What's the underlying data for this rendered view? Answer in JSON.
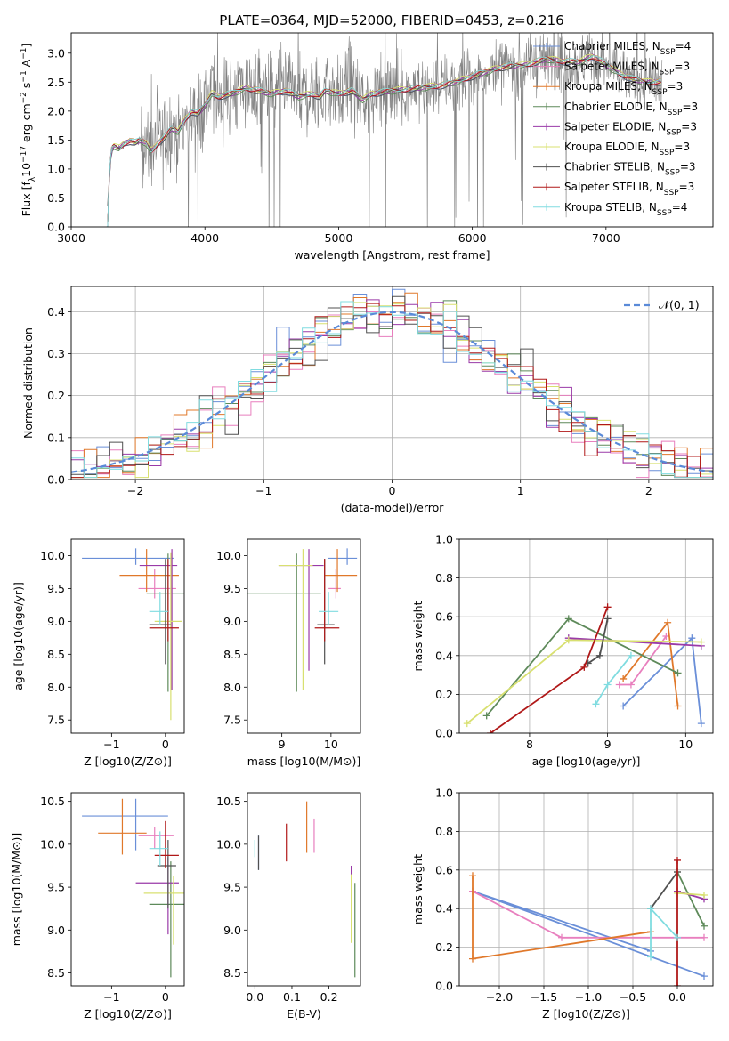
{
  "figure": {
    "title": "PLATE=0364, MJD=52000, FIBERID=0453, z=0.216"
  },
  "models": [
    {
      "name": "Chabrier MILES",
      "nssp": "4",
      "color": "#6a8fd8"
    },
    {
      "name": "Salpeter MILES",
      "nssp": "3",
      "color": "#e87fbe"
    },
    {
      "name": "Kroupa MILES",
      "nssp": "3",
      "color": "#e0782a"
    },
    {
      "name": "Chabrier ELODIE",
      "nssp": "3",
      "color": "#5e8a5a"
    },
    {
      "name": "Salpeter ELODIE",
      "nssp": "3",
      "color": "#9a3aa8"
    },
    {
      "name": "Kroupa ELODIE",
      "nssp": "3",
      "color": "#d8e070"
    },
    {
      "name": "Chabrier STELIB",
      "nssp": "3",
      "color": "#505050"
    },
    {
      "name": "Salpeter STELIB",
      "nssp": "3",
      "color": "#b01818"
    },
    {
      "name": "Kroupa STELIB",
      "nssp": "4",
      "color": "#80dce0"
    }
  ],
  "chart_data": [
    {
      "id": "spectrum",
      "type": "line",
      "title": "PLATE=0364, MJD=52000, FIBERID=0453, z=0.216",
      "xlabel": "wavelength [Angstrom, rest frame]",
      "ylabel": "Flux [f_λ 10^-17 erg cm^-2 s^-1 A^-1]",
      "xlim": [
        3000,
        7800
      ],
      "ylim": [
        0,
        3.35
      ],
      "xticks": [
        "3000",
        "4000",
        "5000",
        "6000",
        "7000"
      ],
      "yticks": [
        "0.0",
        "0.5",
        "1.0",
        "1.5",
        "2.0",
        "2.5",
        "3.0"
      ],
      "legend_position": "right",
      "data_color": "#808080",
      "model_x": [
        3260,
        3300,
        3320,
        3360,
        3400,
        3440,
        3480,
        3520,
        3560,
        3600,
        3650,
        3700,
        3750,
        3800,
        3850,
        3900,
        3950,
        4000,
        4050,
        4100,
        4200,
        4300,
        4400,
        4500,
        4600,
        4700,
        4800,
        4860,
        4900,
        5000,
        5100,
        5180,
        5250,
        5400,
        5600,
        5800,
        6000,
        6200,
        6400,
        6560,
        6700,
        6800,
        6900,
        7000,
        7100,
        7200,
        7300,
        7400
      ],
      "model_y": [
        0.0,
        1.35,
        1.4,
        1.35,
        1.45,
        1.48,
        1.45,
        1.5,
        1.45,
        1.3,
        1.45,
        1.55,
        1.7,
        1.65,
        1.85,
        2.0,
        1.95,
        2.1,
        2.3,
        2.25,
        2.3,
        2.4,
        2.35,
        2.3,
        2.35,
        2.25,
        2.3,
        2.25,
        2.35,
        2.3,
        2.35,
        2.2,
        2.3,
        2.35,
        2.4,
        2.45,
        2.6,
        2.75,
        2.8,
        2.9,
        2.85,
        2.85,
        2.95,
        2.8,
        2.65,
        2.55,
        2.5,
        2.5
      ]
    },
    {
      "id": "residuals",
      "type": "histogram",
      "xlabel": "(data-model)/error",
      "ylabel": "Normed distribution",
      "xlim": [
        -2.5,
        2.5
      ],
      "ylim": [
        0,
        0.46
      ],
      "xticks": [
        "−2",
        "−1",
        "0",
        "1",
        "2"
      ],
      "yticks": [
        "0.0",
        "0.1",
        "0.2",
        "0.3",
        "0.4"
      ],
      "legend": "𝒩(0, 1)",
      "legend_position": "top-right",
      "grid": true,
      "bin_width": 0.1
    },
    {
      "id": "age-vs-z",
      "type": "errorbar",
      "xlabel": "Z [log10(Z/Z⊙)]",
      "ylabel": "age [log10(age/yr)]",
      "xlim": [
        -1.75,
        0.35
      ],
      "ylim": [
        7.3,
        10.25
      ],
      "xticks": [
        "−1",
        "0"
      ],
      "yticks": [
        "7.5",
        "8.0",
        "8.5",
        "9.0",
        "9.5",
        "10.0"
      ],
      "points": [
        {
          "x": -0.55,
          "xerr": [
            1.0,
            0.7
          ],
          "y": 9.96,
          "yerr": [
            0.1,
            0.15
          ]
        },
        {
          "x": -0.2,
          "xerr": [
            0.3,
            0.4
          ],
          "y": 9.5,
          "yerr": [
            0.15,
            0.3
          ]
        },
        {
          "x": -0.35,
          "xerr": [
            0.5,
            0.6
          ],
          "y": 9.7,
          "yerr": [
            0.25,
            0.4
          ]
        },
        {
          "x": 0.05,
          "xerr": [
            0.4,
            0.35
          ],
          "y": 9.43,
          "yerr": [
            1.5,
            0.6
          ]
        },
        {
          "x": 0.12,
          "xerr": [
            0.6,
            0.1
          ],
          "y": 9.85,
          "yerr": [
            1.9,
            0.25
          ]
        },
        {
          "x": 0.1,
          "xerr": [
            0.3,
            0.2
          ],
          "y": 9.0,
          "yerr": [
            1.5,
            1.05
          ]
        },
        {
          "x": 0.0,
          "xerr": [
            0.3,
            0.1
          ],
          "y": 8.95,
          "yerr": [
            0.6,
            1.0
          ]
        },
        {
          "x": 0.05,
          "xerr": [
            0.35,
            0.2
          ],
          "y": 8.9,
          "yerr": [
            0.2,
            1.05
          ]
        },
        {
          "x": -0.1,
          "xerr": [
            0.2,
            0.15
          ],
          "y": 9.15,
          "yerr": [
            0.2,
            0.3
          ]
        }
      ]
    },
    {
      "id": "age-vs-mass",
      "type": "errorbar",
      "xlabel": "mass [log10(M/M⊙)]",
      "ylabel": "",
      "xlim": [
        8.3,
        10.6
      ],
      "ylim": [
        7.3,
        10.25
      ],
      "xticks": [
        "9",
        "10"
      ],
      "yticks": [
        "7.5",
        "8.0",
        "8.5",
        "9.0",
        "9.5",
        "10.0"
      ],
      "points": [
        {
          "x": 10.33,
          "xerr": [
            0.4,
            0.2
          ],
          "y": 9.96,
          "yerr": [
            0.1,
            0.15
          ]
        },
        {
          "x": 10.1,
          "xerr": [
            0.15,
            0.1
          ],
          "y": 9.5,
          "yerr": [
            0.15,
            0.3
          ]
        },
        {
          "x": 10.13,
          "xerr": [
            0.25,
            0.4
          ],
          "y": 9.7,
          "yerr": [
            0.25,
            0.4
          ]
        },
        {
          "x": 9.3,
          "xerr": [
            1.0,
            0.5
          ],
          "y": 9.43,
          "yerr": [
            1.5,
            0.6
          ]
        },
        {
          "x": 9.55,
          "xerr": [
            0.6,
            0.3
          ],
          "y": 9.85,
          "yerr": [
            1.6,
            0.25
          ]
        },
        {
          "x": 9.43,
          "xerr": [
            0.5,
            0.2
          ],
          "y": 9.85,
          "yerr": [
            1.9,
            0.25
          ]
        },
        {
          "x": 9.87,
          "xerr": [
            0.15,
            0.2
          ],
          "y": 8.95,
          "yerr": [
            0.6,
            1.0
          ]
        },
        {
          "x": 9.87,
          "xerr": [
            0.2,
            0.3
          ],
          "y": 8.9,
          "yerr": [
            0.2,
            1.05
          ]
        },
        {
          "x": 9.95,
          "xerr": [
            0.2,
            0.2
          ],
          "y": 9.15,
          "yerr": [
            0.2,
            0.3
          ]
        }
      ]
    },
    {
      "id": "weight-vs-age",
      "type": "line",
      "xlabel": "age [log10(age/yr)]",
      "ylabel": "mass weight",
      "xlim": [
        7.1,
        10.35
      ],
      "ylim": [
        0,
        1.0
      ],
      "xticks": [
        "8",
        "9",
        "10"
      ],
      "yticks": [
        "0.0",
        "0.2",
        "0.4",
        "0.6",
        "0.8",
        "1.0"
      ],
      "grid": true,
      "series": [
        {
          "points": [
            [
              10.2,
              0.05
            ],
            [
              10.08,
              0.49
            ],
            [
              9.2,
              0.14
            ]
          ]
        },
        {
          "points": [
            [
              9.75,
              0.5
            ],
            [
              9.3,
              0.25
            ],
            [
              9.15,
              0.25
            ]
          ]
        },
        {
          "points": [
            [
              9.9,
              0.14
            ],
            [
              9.77,
              0.57
            ],
            [
              9.2,
              0.28
            ]
          ]
        },
        {
          "points": [
            [
              7.45,
              0.09
            ],
            [
              8.5,
              0.59
            ],
            [
              9.9,
              0.31
            ]
          ]
        },
        {
          "points": [
            [
              8.5,
              0.49
            ],
            [
              10.2,
              0.45
            ]
          ]
        },
        {
          "points": [
            [
              7.2,
              0.05
            ],
            [
              8.5,
              0.48
            ],
            [
              10.2,
              0.47
            ]
          ]
        },
        {
          "points": [
            [
              9.0,
              0.59
            ],
            [
              8.9,
              0.4
            ],
            [
              8.75,
              0.36
            ]
          ]
        },
        {
          "points": [
            [
              7.5,
              0.0
            ],
            [
              8.7,
              0.34
            ],
            [
              9.0,
              0.65
            ]
          ]
        },
        {
          "points": [
            [
              8.85,
              0.15
            ],
            [
              9.0,
              0.25
            ],
            [
              9.3,
              0.4
            ]
          ]
        }
      ]
    },
    {
      "id": "mass-vs-z",
      "type": "errorbar",
      "xlabel": "Z [log10(Z/Z⊙)]",
      "ylabel": "mass [log10(M/M⊙)]",
      "xlim": [
        -1.75,
        0.35
      ],
      "ylim": [
        8.35,
        10.6
      ],
      "xticks": [
        "−1",
        "0"
      ],
      "yticks": [
        "8.5",
        "9.0",
        "9.5",
        "10.0",
        "10.5"
      ],
      "points": [
        {
          "x": -0.55,
          "xerr": [
            1.0,
            0.6
          ],
          "y": 10.33,
          "yerr": [
            0.4,
            0.2
          ]
        },
        {
          "x": -0.2,
          "xerr": [
            0.3,
            0.35
          ],
          "y": 10.1,
          "yerr": [
            0.15,
            0.1
          ]
        },
        {
          "x": -0.8,
          "xerr": [
            0.45,
            0.45
          ],
          "y": 10.13,
          "yerr": [
            0.25,
            0.4
          ]
        },
        {
          "x": 0.1,
          "xerr": [
            0.4,
            0.25
          ],
          "y": 9.3,
          "yerr": [
            0.85,
            0.5
          ]
        },
        {
          "x": 0.05,
          "xerr": [
            0.6,
            0.2
          ],
          "y": 9.55,
          "yerr": [
            0.6,
            0.3
          ]
        },
        {
          "x": 0.15,
          "xerr": [
            0.55,
            0.2
          ],
          "y": 9.43,
          "yerr": [
            0.6,
            0.2
          ]
        },
        {
          "x": 0.05,
          "xerr": [
            0.2,
            0.15
          ],
          "y": 9.75,
          "yerr": [
            0.5,
            0.3
          ]
        },
        {
          "x": 0.0,
          "xerr": [
            0.2,
            0.25
          ],
          "y": 9.87,
          "yerr": [
            0.15,
            0.4
          ]
        },
        {
          "x": -0.1,
          "xerr": [
            0.2,
            0.15
          ],
          "y": 9.95,
          "yerr": [
            0.2,
            0.2
          ]
        }
      ]
    },
    {
      "id": "mass-vs-ebv",
      "type": "errorbar",
      "xlabel": "E(B-V)",
      "ylabel": "",
      "xlim": [
        -0.02,
        0.285
      ],
      "ylim": [
        8.35,
        10.6
      ],
      "xticks": [
        "0.0",
        "0.1",
        "0.2"
      ],
      "yticks": [
        "8.5",
        "9.0",
        "9.5",
        "10.0",
        "10.5"
      ],
      "points": [
        {
          "x": 0.01,
          "y": 9.9,
          "yerr": [
            0.2,
            0.2
          ]
        },
        {
          "x": 0.16,
          "y": 10.1,
          "yerr": [
            0.2,
            0.2
          ]
        },
        {
          "x": 0.14,
          "y": 10.2,
          "yerr": [
            0.3,
            0.3
          ]
        },
        {
          "x": 0.27,
          "y": 9.0,
          "yerr": [
            0.55,
            0.55
          ]
        },
        {
          "x": 0.26,
          "y": 9.55,
          "yerr": [
            0.1,
            0.2
          ]
        },
        {
          "x": 0.26,
          "y": 9.25,
          "yerr": [
            0.4,
            0.4
          ]
        },
        {
          "x": 0.01,
          "y": 9.9,
          "yerr": [
            0.2,
            0.2
          ]
        },
        {
          "x": 0.085,
          "y": 10.02,
          "yerr": [
            0.22,
            0.22
          ]
        },
        {
          "x": 0.0,
          "y": 9.95,
          "yerr": [
            0.1,
            0.1
          ]
        }
      ]
    },
    {
      "id": "weight-vs-z",
      "type": "line",
      "xlabel": "Z [log10(Z/Z⊙)]",
      "ylabel": "mass weight",
      "xlim": [
        -2.45,
        0.4
      ],
      "ylim": [
        0,
        1.0
      ],
      "xticks": [
        "−2.0",
        "−1.5",
        "−1.0",
        "−0.5",
        "0.0"
      ],
      "yticks": [
        "0.0",
        "0.2",
        "0.4",
        "0.6",
        "0.8",
        "1.0"
      ],
      "grid": true,
      "series": [
        {
          "points": [
            [
              0.3,
              0.05
            ],
            [
              -2.3,
              0.49
            ],
            [
              -0.3,
              0.18
            ]
          ]
        },
        {
          "points": [
            [
              -2.3,
              0.49
            ],
            [
              -1.3,
              0.25
            ],
            [
              0.3,
              0.25
            ]
          ]
        },
        {
          "points": [
            [
              -2.3,
              0.57
            ],
            [
              -2.3,
              0.14
            ],
            [
              -0.3,
              0.28
            ]
          ]
        },
        {
          "points": [
            [
              0.0,
              0.59
            ],
            [
              0.3,
              0.31
            ]
          ]
        },
        {
          "points": [
            [
              0.0,
              0.49
            ],
            [
              0.3,
              0.45
            ]
          ]
        },
        {
          "points": [
            [
              0.0,
              0.48
            ],
            [
              0.3,
              0.47
            ]
          ]
        },
        {
          "points": [
            [
              0.0,
              0.59
            ],
            [
              -0.3,
              0.4
            ]
          ]
        },
        {
          "points": [
            [
              0.0,
              0.0
            ],
            [
              0.0,
              0.65
            ]
          ]
        },
        {
          "points": [
            [
              -0.3,
              0.15
            ],
            [
              -0.3,
              0.4
            ],
            [
              0.0,
              0.25
            ]
          ]
        }
      ]
    }
  ]
}
